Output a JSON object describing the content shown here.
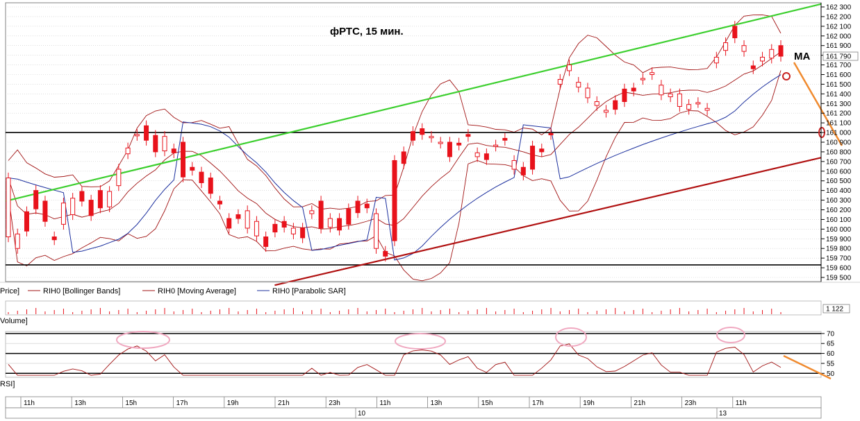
{
  "chart_data": {
    "type": "candlestick",
    "title": "фРТС,  15 мин.",
    "ma_label": "MA",
    "colors": {
      "candle": "#e8121b",
      "bollinger": "#a01010",
      "ma": "#a01010",
      "sar": "#1b2f9e",
      "upper_trend": "#3ccf2e",
      "lower_trend": "#b01010",
      "forecast": "#f08a2e",
      "highlight": "#f0a8c0",
      "rsi": "#a01010",
      "grid": "#c8c8c8"
    },
    "price_axis": {
      "min": 159500,
      "max": 162300,
      "step": 100,
      "tick_labels": [
        "162 300",
        "162 200",
        "162 100",
        "162 000",
        "161 900",
        "161 800",
        "161 700",
        "161 600",
        "161 500",
        "161 400",
        "161 300",
        "161 200",
        "161 100",
        "161 000",
        "160 900",
        "160 800",
        "160 700",
        "160 600",
        "160 500",
        "160 400",
        "160 300",
        "160 200",
        "160 100",
        "160 000",
        "159 900",
        "159 800",
        "159 700",
        "159 600",
        "159 500"
      ],
      "last_price_label": "161 790",
      "last_price": 161790
    },
    "horizontal_levels": [
      161000,
      159630
    ],
    "trend_lines": [
      {
        "name": "upper",
        "from": [
          0,
          160290
        ],
        "to": [
          1,
          162330
        ]
      },
      {
        "name": "lower",
        "from": [
          0.33,
          159420
        ],
        "to": [
          1,
          160740
        ]
      }
    ],
    "closes": [
      160530,
      159950,
      159980,
      160210,
      160080,
      159890,
      160270,
      160320,
      160290,
      160140,
      160220,
      160390,
      160620,
      160840,
      160980,
      160920,
      160800,
      160960,
      160790,
      160540,
      160610,
      160480,
      160370,
      160260,
      160010,
      160110,
      160190,
      160080,
      159820,
      159970,
      160020,
      160010,
      159910,
      160190,
      160010,
      160110,
      159990,
      160050,
      160170,
      160220,
      160160,
      159720,
      159880,
      160680,
      160920,
      160980,
      160960,
      160900,
      160750,
      160870,
      160960,
      160790,
      160720,
      160870,
      160920,
      160710,
      160560,
      160620,
      160800,
      160980,
      161550,
      161700,
      161520,
      161460,
      161320,
      161230,
      161240,
      161320,
      161430,
      161560,
      161620,
      161490,
      161400,
      161400,
      161290,
      161310,
      161250,
      161780,
      161930,
      161980,
      161900,
      161660,
      161780,
      161860,
      161790
    ],
    "candle_values": [
      159920,
      159800,
      160180,
      160400,
      160290,
      159920,
      160050,
      160150,
      160390,
      160300,
      160400,
      160230,
      160450,
      160780,
      160970,
      161070,
      160970,
      160810,
      160830,
      160900,
      160640,
      160590,
      160530,
      160290,
      160110,
      160150,
      160010,
      159930,
      159920,
      160050,
      160080,
      159950,
      160010,
      160160,
      160290,
      160020,
      160110,
      160210,
      160290,
      160260,
      159800,
      159770,
      160710,
      160800,
      161010,
      161040,
      160950,
      160890,
      160900,
      160890,
      160980,
      160750,
      160780,
      160860,
      160940,
      160620,
      160640,
      160860,
      160830,
      160990,
      161500,
      161640,
      161470,
      161360,
      161280,
      161210,
      161330,
      161450,
      161460,
      161550,
      161600,
      161390,
      161370,
      161270,
      161240,
      161310,
      161230,
      161720,
      161850,
      162100,
      161840,
      161690,
      161740,
      161770,
      161900
    ],
    "time_labels": [
      "11h",
      "13h",
      "15h",
      "17h",
      "19h",
      "21h",
      "23h",
      "11h",
      "13h",
      "15h",
      "17h",
      "19h",
      "21h",
      "23h",
      "11h"
    ],
    "date_labels": [
      "10",
      "13"
    ],
    "legend": [
      "Price]",
      "RIH0 [Bollinger Bands]",
      "RIH0 [Moving Average]",
      "RIH0 [Parabolic SAR]"
    ],
    "volume": {
      "label": "Volume]",
      "last_label": "1 122"
    },
    "rsi": {
      "label": "RSI]",
      "min": 48,
      "max": 71,
      "tick_labels": [
        "70",
        "65",
        "60",
        "55",
        "50"
      ],
      "levels": [
        70,
        65,
        60,
        55,
        50
      ],
      "bold_levels": [
        70,
        60,
        50
      ]
    }
  }
}
